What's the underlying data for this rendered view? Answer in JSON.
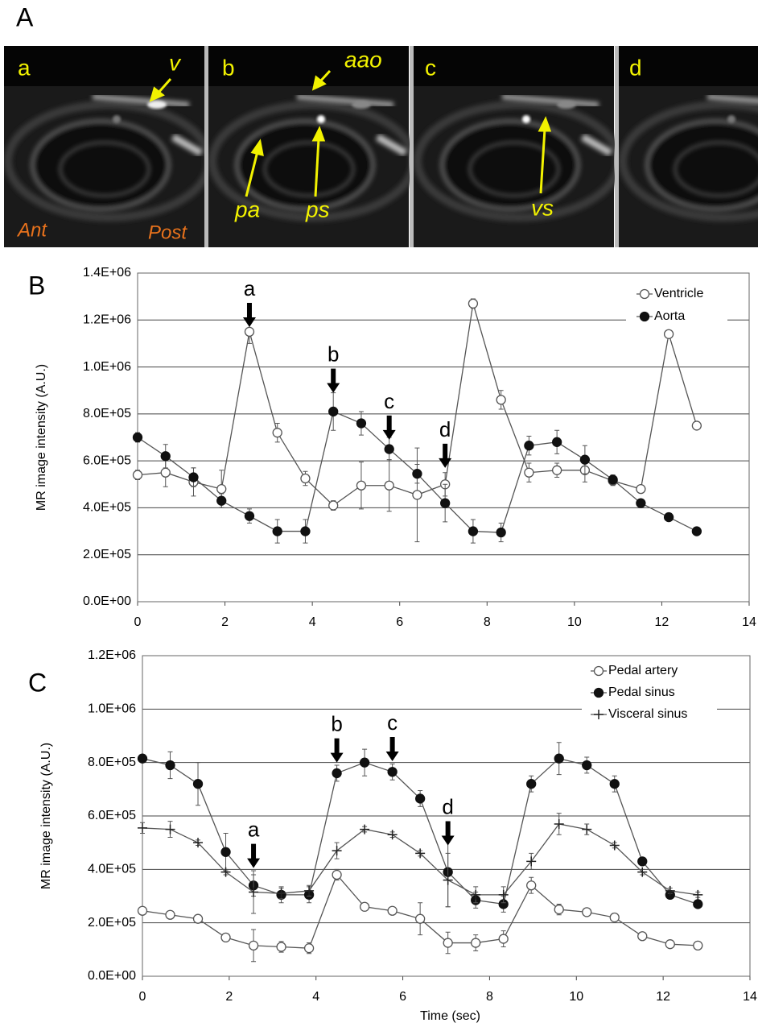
{
  "panel_a": {
    "label": "A",
    "frames": [
      "a",
      "b",
      "c",
      "d"
    ],
    "annotations": [
      "v",
      "aao",
      "pa",
      "ps",
      "vs"
    ],
    "orientation": [
      "Ant",
      "Post"
    ]
  },
  "chart_data": [
    {
      "type": "line",
      "panel_label": "B",
      "y_label": "MR image intensity (A.U.)",
      "x": [
        0,
        0.64,
        1.28,
        1.92,
        2.56,
        3.2,
        3.84,
        4.48,
        5.12,
        5.76,
        6.4,
        7.04,
        7.68,
        8.32,
        8.96,
        9.6,
        10.24,
        10.88,
        11.52,
        12.16,
        12.8
      ],
      "xlim": [
        0,
        14
      ],
      "xticks": [
        0,
        2,
        4,
        6,
        8,
        10,
        12,
        14
      ],
      "ylim": [
        0,
        1400000
      ],
      "yticks": [
        {
          "value": 0,
          "label": "0.0E+00"
        },
        {
          "value": 200000,
          "label": "2.0E+05"
        },
        {
          "value": 400000,
          "label": "4.0E+05"
        },
        {
          "value": 600000,
          "label": "6.0E+05"
        },
        {
          "value": 800000,
          "label": "8.0E+05"
        },
        {
          "value": 1000000,
          "label": "1.0E+06"
        },
        {
          "value": 1200000,
          "label": "1.2E+06"
        },
        {
          "value": 1400000,
          "label": "1.4E+06"
        }
      ],
      "grid": true,
      "legend": "top-right",
      "series": [
        {
          "name": "Ventricle",
          "color": "#555555",
          "marker": "open",
          "values": [
            540000,
            550000,
            510000,
            480000,
            1150000,
            720000,
            525000,
            410000,
            495000,
            495000,
            455000,
            500000,
            1270000,
            860000,
            550000,
            560000,
            560000,
            515000,
            480000,
            1140000,
            750000
          ],
          "errors": [
            20000,
            60000,
            60000,
            80000,
            50000,
            40000,
            30000,
            20000,
            100000,
            110000,
            200000,
            50000,
            20000,
            40000,
            40000,
            30000,
            50000,
            20000,
            10000,
            10000,
            10000
          ]
        },
        {
          "name": "Aorta",
          "color": "#555555",
          "marker": "filled",
          "values": [
            700000,
            620000,
            530000,
            430000,
            365000,
            300000,
            300000,
            810000,
            760000,
            650000,
            545000,
            420000,
            300000,
            295000,
            665000,
            680000,
            605000,
            520000,
            420000,
            360000,
            300000
          ],
          "errors": [
            20000,
            50000,
            40000,
            30000,
            30000,
            50000,
            50000,
            80000,
            50000,
            50000,
            40000,
            80000,
            50000,
            40000,
            40000,
            50000,
            60000,
            20000,
            10000,
            10000,
            10000
          ]
        }
      ],
      "annotations": [
        {
          "text": "a",
          "x": 2.56,
          "y": 1170000
        },
        {
          "text": "b",
          "x": 4.48,
          "y": 890000
        },
        {
          "text": "c",
          "x": 5.76,
          "y": 690000
        },
        {
          "text": "d",
          "x": 7.04,
          "y": 570000
        }
      ]
    },
    {
      "type": "line",
      "panel_label": "C",
      "y_label": "MR image intensity (A.U.)",
      "x_label": "Time (sec)",
      "x": [
        0,
        0.64,
        1.28,
        1.92,
        2.56,
        3.2,
        3.84,
        4.48,
        5.12,
        5.76,
        6.4,
        7.04,
        7.68,
        8.32,
        8.96,
        9.6,
        10.24,
        10.88,
        11.52,
        12.16,
        12.8
      ],
      "xlim": [
        0,
        14
      ],
      "xticks": [
        0,
        2,
        4,
        6,
        8,
        10,
        12,
        14
      ],
      "ylim": [
        0,
        1200000
      ],
      "yticks": [
        {
          "value": 0,
          "label": "0.0E+00"
        },
        {
          "value": 200000,
          "label": "2.0E+05"
        },
        {
          "value": 400000,
          "label": "4.0E+05"
        },
        {
          "value": 600000,
          "label": "6.0E+05"
        },
        {
          "value": 800000,
          "label": "8.0E+05"
        },
        {
          "value": 1000000,
          "label": "1.0E+06"
        },
        {
          "value": 1200000,
          "label": "1.2E+06"
        }
      ],
      "grid": true,
      "legend": "top-right",
      "series": [
        {
          "name": "Pedal artery",
          "color": "#555555",
          "marker": "open",
          "values": [
            245000,
            230000,
            215000,
            145000,
            115000,
            110000,
            105000,
            380000,
            260000,
            245000,
            215000,
            125000,
            125000,
            140000,
            340000,
            250000,
            240000,
            220000,
            150000,
            120000,
            115000
          ],
          "errors": [
            10000,
            10000,
            10000,
            10000,
            60000,
            20000,
            20000,
            20000,
            10000,
            10000,
            60000,
            40000,
            30000,
            30000,
            30000,
            20000,
            10000,
            10000,
            10000,
            10000,
            10000
          ]
        },
        {
          "name": "Pedal sinus",
          "color": "#555555",
          "marker": "filled",
          "values": [
            815000,
            790000,
            720000,
            465000,
            340000,
            305000,
            305000,
            760000,
            800000,
            765000,
            665000,
            390000,
            285000,
            270000,
            720000,
            815000,
            790000,
            720000,
            430000,
            305000,
            270000
          ],
          "errors": [
            10000,
            50000,
            80000,
            70000,
            40000,
            30000,
            30000,
            30000,
            50000,
            30000,
            30000,
            130000,
            30000,
            30000,
            30000,
            60000,
            30000,
            30000,
            10000,
            10000,
            10000
          ]
        },
        {
          "name": "Visceral sinus",
          "color": "#555555",
          "marker": "plus",
          "values": [
            555000,
            550000,
            500000,
            390000,
            315000,
            310000,
            320000,
            470000,
            550000,
            530000,
            460000,
            360000,
            305000,
            305000,
            430000,
            570000,
            550000,
            490000,
            390000,
            320000,
            305000
          ],
          "errors": [
            20000,
            30000,
            10000,
            10000,
            80000,
            20000,
            20000,
            30000,
            10000,
            10000,
            10000,
            100000,
            30000,
            30000,
            30000,
            40000,
            20000,
            10000,
            10000,
            10000,
            10000
          ]
        }
      ],
      "annotations": [
        {
          "text": "a",
          "x": 2.56,
          "y": 405000
        },
        {
          "text": "b",
          "x": 4.48,
          "y": 800000
        },
        {
          "text": "c",
          "x": 5.76,
          "y": 805000
        },
        {
          "text": "d",
          "x": 7.04,
          "y": 490000
        }
      ]
    }
  ]
}
